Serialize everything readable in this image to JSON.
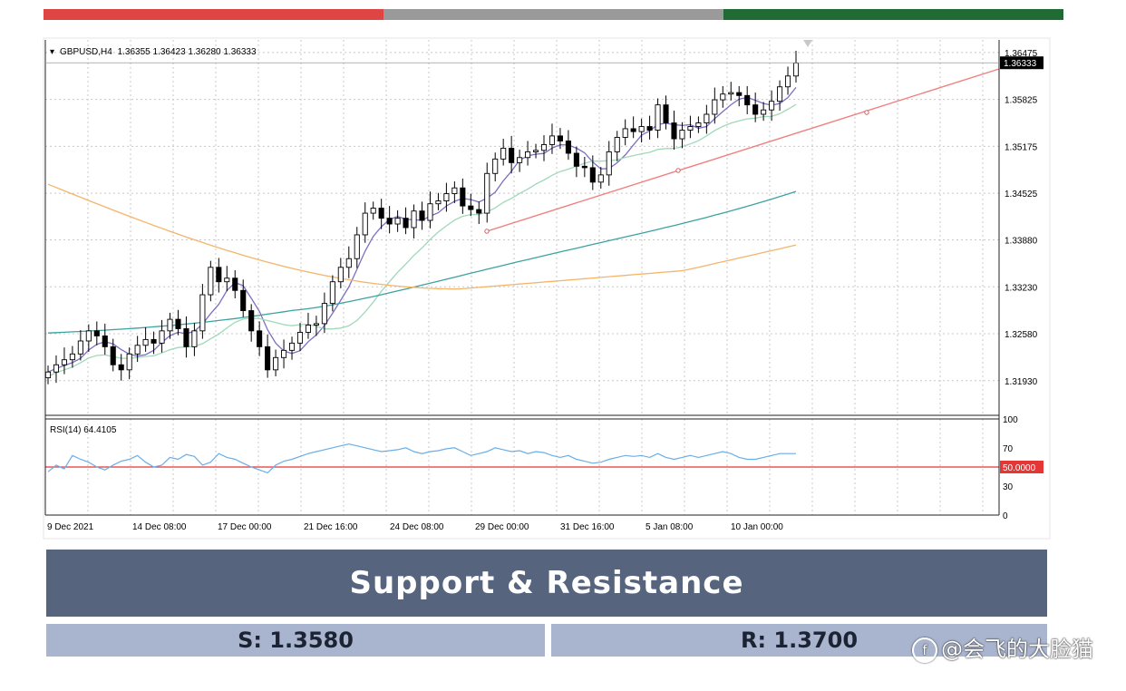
{
  "colors": {
    "bar_red": "#e04545",
    "bar_grey": "#9a9a9a",
    "bar_green": "#1f6b33",
    "banner": "#56647e",
    "box": "#a9b5cf",
    "trendline": "#f08080",
    "ma_fast": "#7b6fc2",
    "ma_mid": "#9fd9b8",
    "ma_slow": "#3aa3a0",
    "ma_long": "#f5b46a",
    "rsi": "#6aaee8",
    "rsi_level": "#e53535"
  },
  "chart_data": [
    {
      "type": "candlestick",
      "symbol": "GBPUSD,H4",
      "header_values": "1.36355 1.36423 1.36280 1.36333",
      "y_ticks": [
        "1.36475",
        "1.35825",
        "1.35175",
        "1.34525",
        "1.33880",
        "1.33230",
        "1.32580",
        "1.31930"
      ],
      "ylim": [
        1.3145,
        1.3665
      ],
      "current_price": "1.36333",
      "x_ticks": [
        "9 Dec 2021",
        "14 Dec 08:00",
        "17 Dec 00:00",
        "21 Dec 16:00",
        "24 Dec 08:00",
        "29 Dec 00:00",
        "31 Dec 16:00",
        "5 Jan 08:00",
        "10 Jan 00:00"
      ],
      "candles_close": [
        1.3205,
        1.3215,
        1.3222,
        1.323,
        1.3248,
        1.3262,
        1.3255,
        1.324,
        1.3215,
        1.3208,
        1.323,
        1.3242,
        1.325,
        1.3245,
        1.3262,
        1.3278,
        1.3265,
        1.324,
        1.3262,
        1.3312,
        1.335,
        1.333,
        1.3335,
        1.3318,
        1.329,
        1.3262,
        1.324,
        1.3208,
        1.3225,
        1.3235,
        1.3245,
        1.326,
        1.327,
        1.3272,
        1.33,
        1.333,
        1.335,
        1.3362,
        1.3395,
        1.3425,
        1.3432,
        1.3418,
        1.341,
        1.3418,
        1.3405,
        1.3428,
        1.3415,
        1.3438,
        1.3442,
        1.3452,
        1.346,
        1.3435,
        1.343,
        1.3425,
        1.348,
        1.35,
        1.3515,
        1.3495,
        1.3502,
        1.351,
        1.3512,
        1.352,
        1.3532,
        1.3525,
        1.3508,
        1.349,
        1.3488,
        1.3468,
        1.3478,
        1.351,
        1.353,
        1.3542,
        1.3538,
        1.3545,
        1.354,
        1.3575,
        1.355,
        1.3528,
        1.354,
        1.3545,
        1.355,
        1.3562,
        1.3582,
        1.359,
        1.3592,
        1.3588,
        1.3575,
        1.3562,
        1.3568,
        1.358,
        1.36,
        1.3615,
        1.3633
      ],
      "series": [
        {
          "name": "MA fast",
          "color": "#7b6fc2"
        },
        {
          "name": "MA mid",
          "color": "#9fd9b8"
        },
        {
          "name": "MA slow",
          "color": "#3aa3a0"
        },
        {
          "name": "MA long",
          "color": "#f5b46a"
        },
        {
          "name": "Trendline",
          "color": "#f08080"
        }
      ]
    },
    {
      "type": "line",
      "label": "RSI(14) 64.4105",
      "y_ticks": [
        "100",
        "70",
        "50.0000",
        "30",
        "0"
      ],
      "ylim": [
        0,
        100
      ],
      "level": 50,
      "values": [
        45,
        52,
        48,
        62,
        58,
        55,
        50,
        47,
        52,
        56,
        58,
        62,
        55,
        50,
        52,
        60,
        58,
        63,
        61,
        52,
        55,
        64,
        60,
        58,
        54,
        50,
        47,
        44,
        52,
        56,
        58,
        61,
        64,
        66,
        68,
        70,
        72,
        74,
        72,
        70,
        68,
        66,
        67,
        68,
        70,
        66,
        64,
        66,
        67,
        69,
        70,
        66,
        62,
        64,
        66,
        70,
        68,
        66,
        67,
        64,
        66,
        65,
        62,
        60,
        62,
        58,
        56,
        54,
        55,
        58,
        60,
        62,
        61,
        62,
        60,
        64,
        60,
        58,
        60,
        62,
        60,
        62,
        64,
        66,
        64,
        60,
        58,
        58,
        60,
        62,
        64,
        64,
        64
      ]
    }
  ],
  "banner": {
    "title": "Support & Resistance"
  },
  "levels": {
    "support": "S: 1.3580",
    "resistance": "R: 1.3700"
  },
  "watermark": {
    "text": "@会飞的大脸猫",
    "icon": "zhihu-icon"
  }
}
